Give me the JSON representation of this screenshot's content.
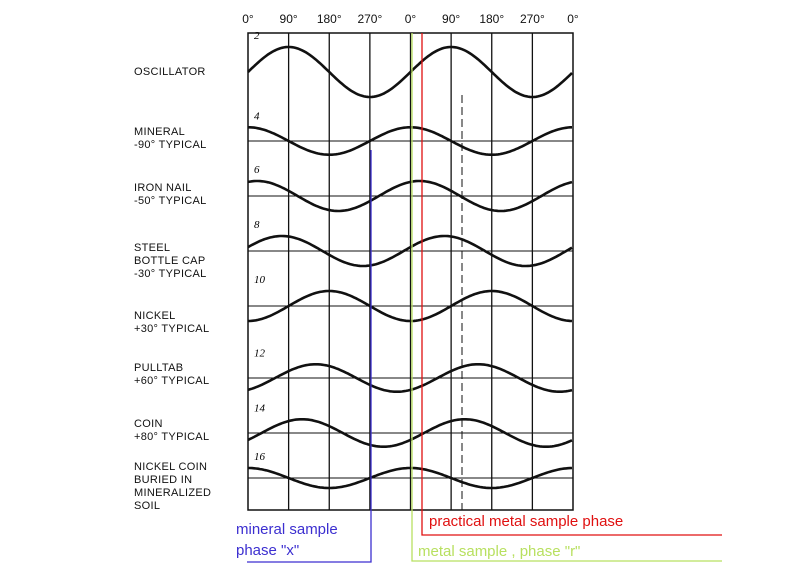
{
  "axis_ticks": [
    "0°",
    "90°",
    "180°",
    "270°",
    "0°",
    "90°",
    "180°",
    "270°",
    "0°"
  ],
  "signals": [
    {
      "ref": "2",
      "label": "OSCILLATOR",
      "peak_deg": 90,
      "amp": 1.0
    },
    {
      "ref": "4",
      "label": "MINERAL\n-90° TYPICAL",
      "peak_deg": 0,
      "amp": 0.55
    },
    {
      "ref": "6",
      "label": "IRON NAIL\n-50° TYPICAL",
      "peak_deg": 20,
      "amp": 0.6
    },
    {
      "ref": "8",
      "label": "STEEL\nBOTTLE CAP\n-30° TYPICAL",
      "peak_deg": 75,
      "amp": 0.6
    },
    {
      "ref": "10",
      "label": "NICKEL\n+30° TYPICAL",
      "peak_deg": 180,
      "amp": 0.6
    },
    {
      "ref": "12",
      "label": "PULLTAB\n+60° TYPICAL",
      "peak_deg": 150,
      "amp": 0.55
    },
    {
      "ref": "14",
      "label": "COIN\n+80° TYPICAL",
      "peak_deg": 120,
      "amp": 0.55
    },
    {
      "ref": "16",
      "label": "NICKEL COIN\nBURIED IN\nMINERALIZED\nSOIL",
      "peak_deg": 0,
      "amp": 0.4
    }
  ],
  "annotations": {
    "mineral": "mineral sample\nphase \"x\"",
    "practical": "practical metal sample phase",
    "metal": "metal sample , phase \"r\""
  },
  "colors": {
    "mineral": "#3c2fd0",
    "practical": "#e01010",
    "metal": "#b8e060"
  }
}
